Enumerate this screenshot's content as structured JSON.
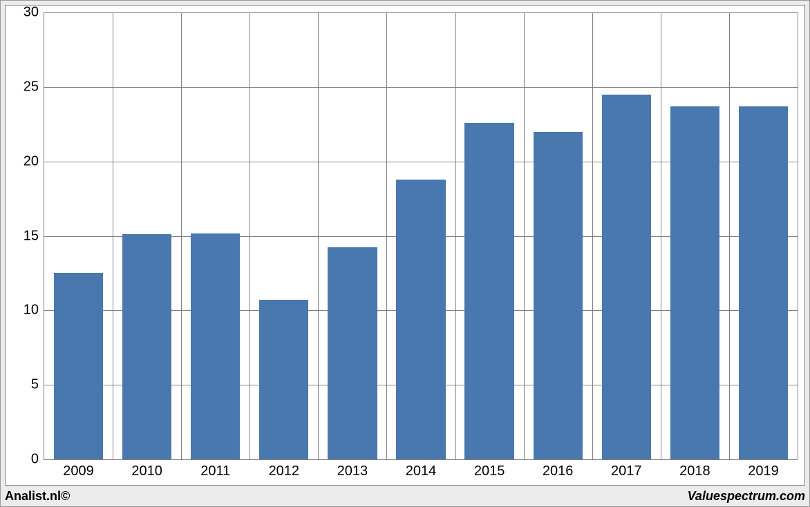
{
  "chart": {
    "type": "bar",
    "categories": [
      "2009",
      "2010",
      "2011",
      "2012",
      "2013",
      "2014",
      "2015",
      "2016",
      "2017",
      "2018",
      "2019"
    ],
    "values": [
      12.5,
      15.1,
      15.15,
      10.7,
      14.25,
      18.8,
      22.6,
      22.0,
      24.5,
      23.7,
      23.7
    ],
    "bar_color": "#4878ae",
    "ylim": [
      0,
      30
    ],
    "ytick_step": 5,
    "yticks": [
      0,
      5,
      10,
      15,
      20,
      25,
      30
    ],
    "grid_color": "#808080",
    "background_color": "#ffffff",
    "outer_background_color": "#ececec",
    "axis_fontsize": 20,
    "bar_width_ratio": 0.72
  },
  "footer": {
    "left": "Analist.nl©",
    "right": "Valuespectrum.com"
  }
}
